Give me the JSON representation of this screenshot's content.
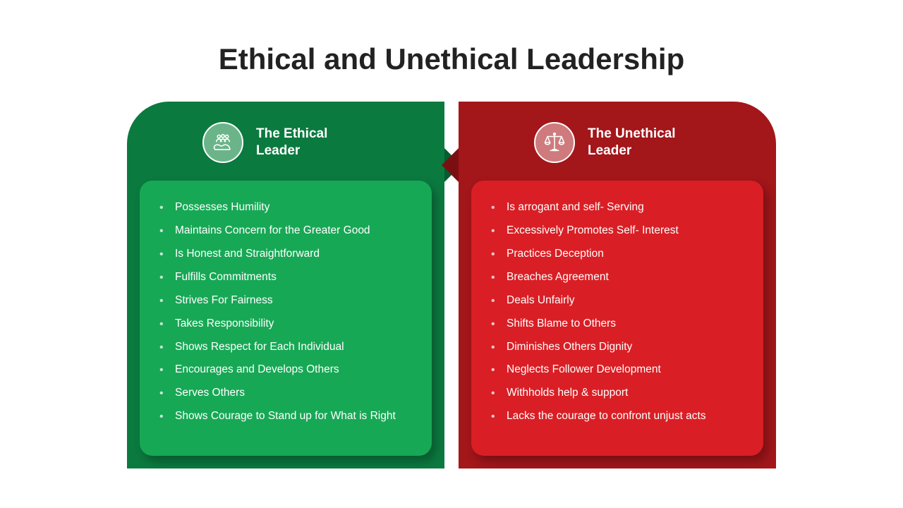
{
  "title": "Ethical and Unethical Leadership",
  "background_color": "#ffffff",
  "title_color": "#222222",
  "title_fontsize": 42,
  "panels": {
    "left": {
      "header_title": "The Ethical Leader",
      "back_color": "#0b7a3f",
      "notch_color": "#065d30",
      "card_color": "#17a855",
      "icon_circle_fill": "#6bb48a",
      "icon_name": "people-hand-icon",
      "text_color": "#ffffff",
      "item_fontsize": 15.5,
      "items": [
        "Possesses Humility",
        "Maintains Concern for the Greater Good",
        "Is Honest and Straightforward",
        "Fulfills Commitments",
        "Strives For Fairness",
        "Takes Responsibility",
        "Shows Respect for Each Individual",
        "Encourages and Develops Others",
        "Serves Others",
        "Shows Courage to Stand up for What is Right"
      ]
    },
    "right": {
      "header_title": "The Unethical Leader",
      "back_color": "#a3161a",
      "notch_color": "#7a0f12",
      "card_color": "#d91f25",
      "icon_circle_fill": "#cf7a7d",
      "icon_name": "scales-icon",
      "text_color": "#ffffff",
      "item_fontsize": 15.5,
      "items": [
        "Is arrogant and self- Serving",
        "Excessively Promotes Self- Interest",
        "Practices Deception",
        "Breaches Agreement",
        "Deals Unfairly",
        "Shifts Blame to Others",
        "Diminishes Others Dignity",
        "Neglects Follower Development",
        "Withholds help & support",
        "Lacks the courage to confront unjust acts"
      ]
    }
  }
}
